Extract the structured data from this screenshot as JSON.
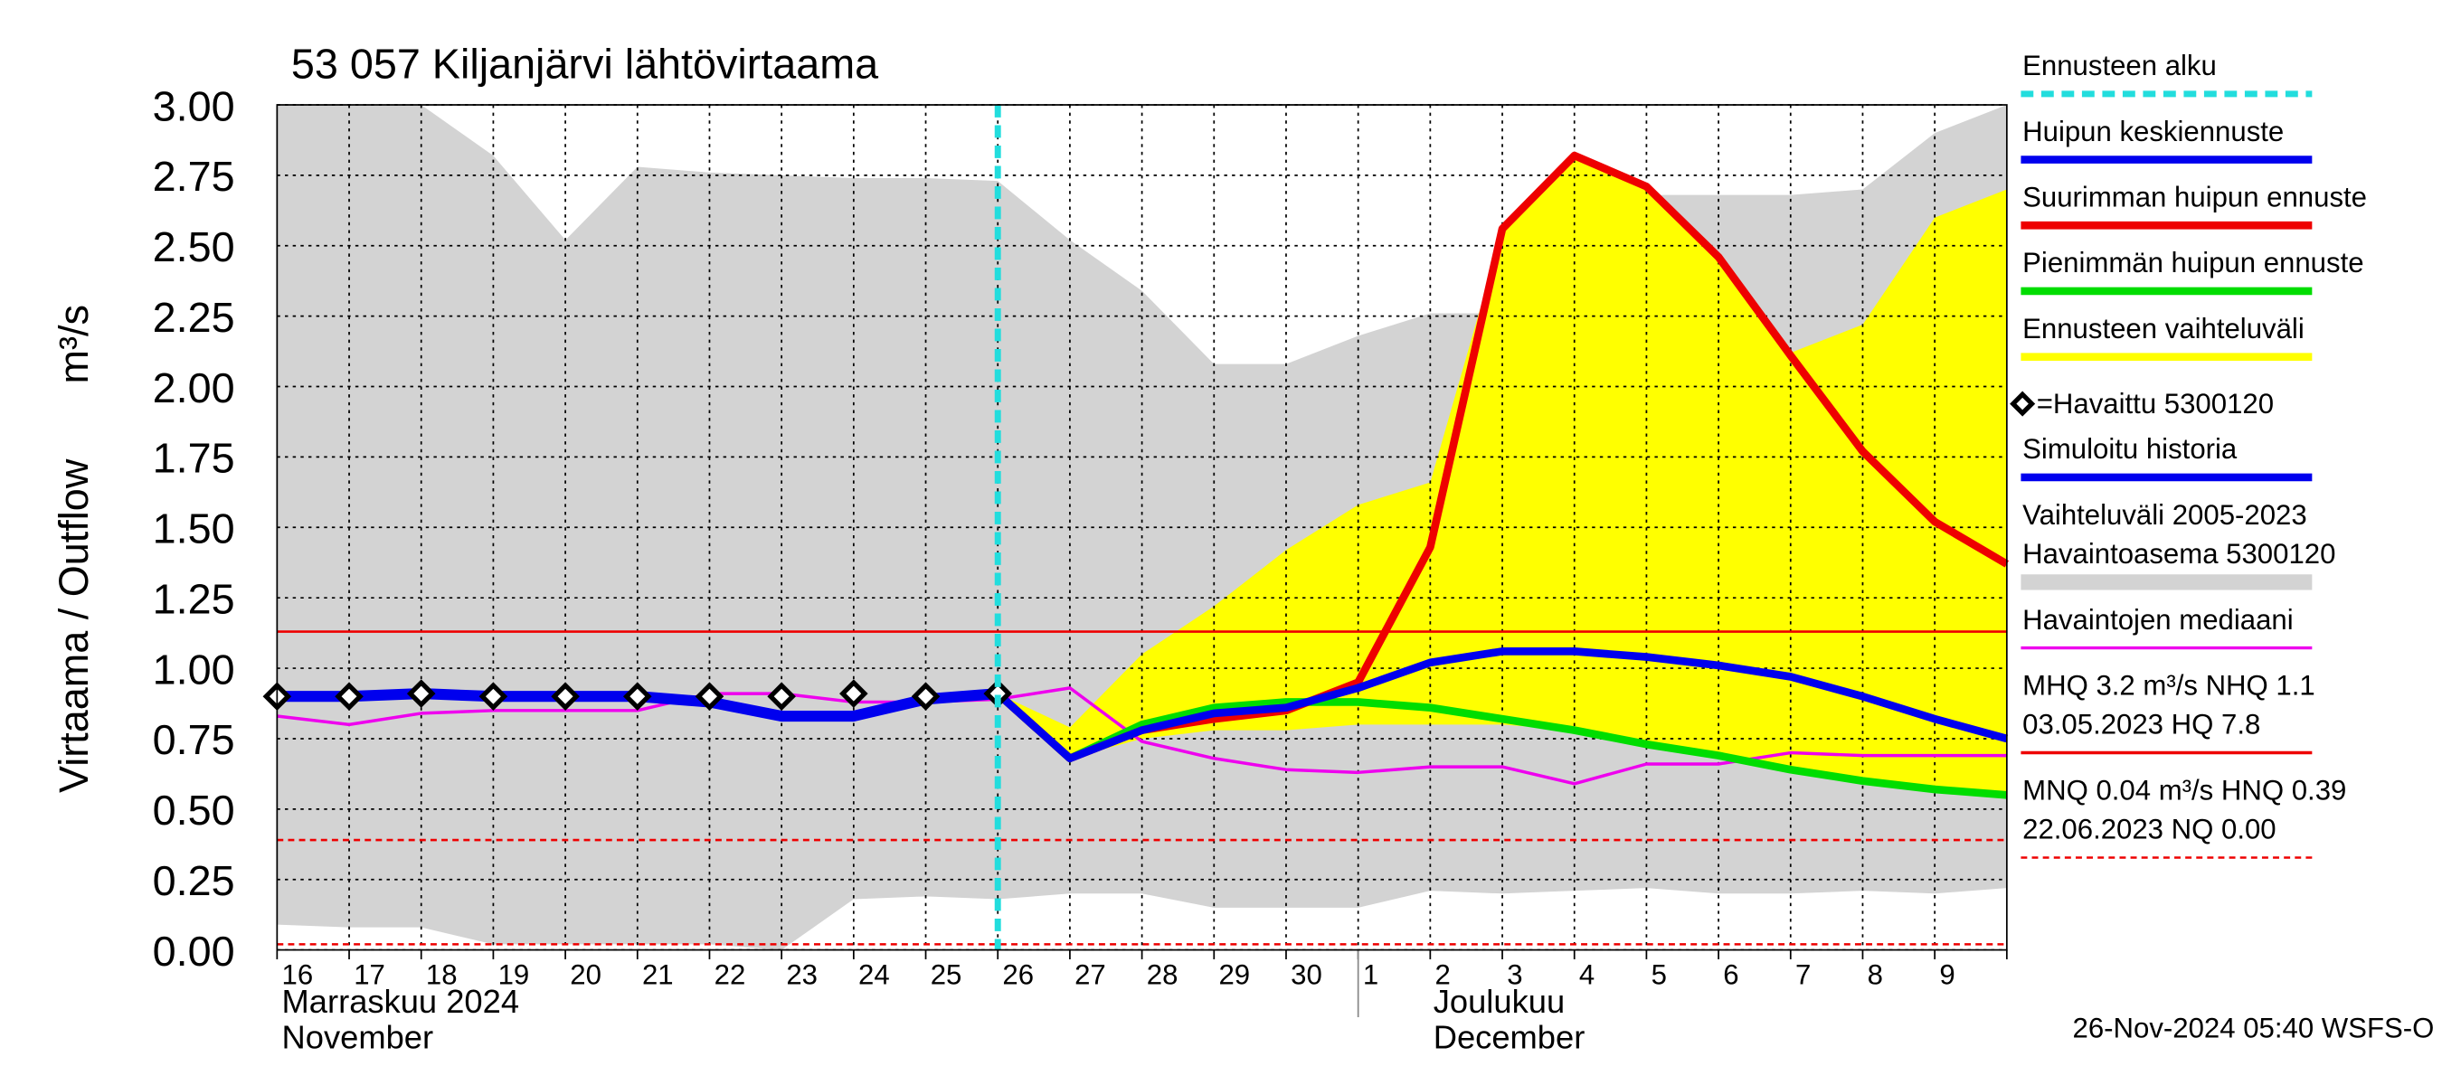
{
  "chart_data": {
    "type": "line",
    "title": "53 057 Kiljanjärvi lähtövirtaama",
    "y_label": "Virtaama / Outflow",
    "y_unit": "m³/s",
    "footer": "26-Nov-2024 05:40 WSFS-O",
    "month_labels": [
      [
        "Marraskuu 2024",
        "November"
      ],
      [
        "Joulukuu",
        "December"
      ]
    ],
    "categories": [
      "16",
      "17",
      "18",
      "19",
      "20",
      "21",
      "22",
      "23",
      "24",
      "25",
      "26",
      "27",
      "28",
      "29",
      "30",
      "1",
      "2",
      "3",
      "4",
      "5",
      "6",
      "7",
      "8",
      "9",
      null
    ],
    "xlim": [
      0,
      24
    ],
    "ylim": [
      0,
      3
    ],
    "yticks": [
      {
        "value": 0,
        "label": "0.00"
      },
      {
        "value": 0.25,
        "label": "0.25"
      },
      {
        "value": 0.5,
        "label": "0.50"
      },
      {
        "value": 0.75,
        "label": "0.75"
      },
      {
        "value": 1,
        "label": "1.00"
      },
      {
        "value": 1.25,
        "label": "1.25"
      },
      {
        "value": 1.5,
        "label": "1.50"
      },
      {
        "value": 1.75,
        "label": "1.75"
      },
      {
        "value": 2,
        "label": "2.00"
      },
      {
        "value": 2.25,
        "label": "2.25"
      },
      {
        "value": 2.5,
        "label": "2.50"
      },
      {
        "value": 2.75,
        "label": "2.75"
      },
      {
        "value": 3,
        "label": "3.00"
      }
    ],
    "grid": true,
    "forecast_start": 10,
    "forecast_color": "#22dddd",
    "reference_lines": [
      {
        "value": 1.13,
        "color": "#ee0000",
        "dashed": false
      },
      {
        "value": 0.39,
        "color": "#ee0000",
        "dashed": true
      },
      {
        "value": 0.02,
        "color": "#ee0000",
        "dashed": true
      }
    ],
    "bands": [
      {
        "name": "Vaihteluväli 2005-2023",
        "color": "#d3d3d3",
        "upper": [
          3.0,
          3.0,
          3.0,
          2.82,
          2.52,
          2.78,
          2.76,
          2.75,
          2.74,
          2.74,
          2.73,
          2.52,
          2.34,
          2.08,
          2.08,
          2.18,
          2.26,
          2.26,
          2.48,
          2.68,
          2.68,
          2.68,
          2.7,
          2.9,
          3.0
        ],
        "lower": [
          0.09,
          0.08,
          0.08,
          0.02,
          0.02,
          0.02,
          0.02,
          0.0,
          0.18,
          0.19,
          0.18,
          0.2,
          0.2,
          0.15,
          0.15,
          0.15,
          0.21,
          0.2,
          0.21,
          0.22,
          0.2,
          0.2,
          0.21,
          0.2,
          0.22
        ]
      },
      {
        "name": "Ennusteen vaihteluväli",
        "color": "#ffff00",
        "upper": [
          null,
          null,
          null,
          null,
          null,
          null,
          null,
          null,
          null,
          null,
          0.91,
          0.79,
          1.05,
          1.22,
          1.42,
          1.58,
          1.66,
          2.55,
          2.82,
          2.71,
          2.46,
          2.12,
          2.22,
          2.6,
          2.7
        ],
        "lower": [
          null,
          null,
          null,
          null,
          null,
          null,
          null,
          null,
          null,
          null,
          0.89,
          0.68,
          0.75,
          0.78,
          0.78,
          0.8,
          0.8,
          0.8,
          0.78,
          0.73,
          0.69,
          0.64,
          0.6,
          0.57,
          0.55
        ]
      }
    ],
    "series": [
      {
        "name": "Havaintojen mediaani",
        "color": "#ee00ee",
        "width": 2,
        "values": [
          0.83,
          0.8,
          0.84,
          0.85,
          0.85,
          0.85,
          0.91,
          0.91,
          0.88,
          0.88,
          0.89,
          0.93,
          0.74,
          0.68,
          0.64,
          0.63,
          0.65,
          0.65,
          0.59,
          0.66,
          0.66,
          0.7,
          0.69,
          0.69,
          0.69
        ]
      },
      {
        "name": "Pienimmän huipun ennuste",
        "color": "#00dd00",
        "width": 5,
        "values": [
          null,
          null,
          null,
          null,
          null,
          null,
          null,
          null,
          null,
          null,
          0.91,
          0.68,
          0.8,
          0.86,
          0.88,
          0.88,
          0.86,
          0.82,
          0.78,
          0.73,
          0.69,
          0.64,
          0.6,
          0.57,
          0.55
        ]
      },
      {
        "name": "Suurimman huipun ennuste",
        "color": "#ee0000",
        "width": 5,
        "values": [
          null,
          null,
          null,
          null,
          null,
          null,
          null,
          null,
          null,
          null,
          0.91,
          0.68,
          0.78,
          0.82,
          0.85,
          0.95,
          1.43,
          2.56,
          2.82,
          2.71,
          2.46,
          2.11,
          1.77,
          1.52,
          1.37
        ]
      },
      {
        "name": "Huipun keskiennuste",
        "color": "#0000ee",
        "width": 5,
        "values": [
          null,
          null,
          null,
          null,
          null,
          null,
          null,
          null,
          null,
          null,
          0.91,
          0.68,
          0.78,
          0.84,
          0.86,
          0.93,
          1.02,
          1.06,
          1.06,
          1.04,
          1.01,
          0.97,
          0.9,
          0.82,
          0.75
        ]
      },
      {
        "name": "Simuloitu historia",
        "color": "#0000ee",
        "width": 7,
        "values": [
          0.9,
          0.9,
          0.91,
          0.9,
          0.9,
          0.9,
          0.88,
          0.83,
          0.83,
          0.89,
          0.91,
          null,
          null,
          null,
          null,
          null,
          null,
          null,
          null,
          null,
          null,
          null,
          null,
          null,
          null
        ]
      }
    ],
    "observed": {
      "name": "=Havaittu 5300120",
      "color": "#000000",
      "values": [
        0.9,
        0.9,
        0.91,
        0.9,
        0.9,
        0.9,
        0.9,
        0.9,
        0.91,
        0.9,
        0.91,
        null,
        null,
        null,
        null,
        null,
        null,
        null,
        null,
        null,
        null,
        null,
        null,
        null,
        null
      ]
    },
    "legend": [
      {
        "label": [
          "Ennusteen alku"
        ],
        "color": "#22dddd",
        "style": "dashed"
      },
      {
        "label": [
          "Huipun keskiennuste"
        ],
        "color": "#0000ee",
        "style": "line"
      },
      {
        "label": [
          "Suurimman huipun ennuste"
        ],
        "color": "#ee0000",
        "style": "line"
      },
      {
        "label": [
          "Pienimmän huipun ennuste"
        ],
        "color": "#00dd00",
        "style": "line"
      },
      {
        "label": [
          "Ennusteen vaihteluväli"
        ],
        "color": "#ffff00",
        "style": "line"
      },
      {
        "label": [
          "=Havaittu 5300120"
        ],
        "color": "#000000",
        "style": "marker"
      },
      {
        "label": [
          "Simuloitu historia"
        ],
        "color": "#0000ee",
        "style": "line"
      },
      {
        "label": [
          "Vaihteluväli 2005-2023",
          " Havaintoasema 5300120"
        ],
        "color": "#d3d3d3",
        "style": "band"
      },
      {
        "label": [
          "Havaintojen mediaani"
        ],
        "color": "#ee00ee",
        "style": "thin"
      },
      {
        "label": [
          "MHQ  3.2 m³/s NHQ  1.1",
          "03.05.2023 HQ  7.8"
        ],
        "color": "#ee0000",
        "style": "thin"
      },
      {
        "label": [
          "MNQ 0.04 m³/s HNQ 0.39",
          "22.06.2023 NQ 0.00"
        ],
        "color": "#ee0000",
        "style": "thindashed"
      }
    ]
  }
}
